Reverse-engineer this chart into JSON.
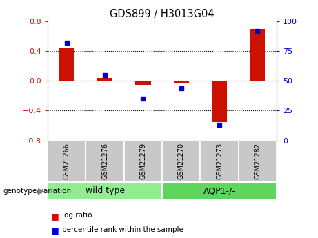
{
  "title": "GDS899 / H3013G04",
  "samples": [
    "GSM21266",
    "GSM21276",
    "GSM21279",
    "GSM21270",
    "GSM21273",
    "GSM21282"
  ],
  "log_ratio": [
    0.45,
    0.04,
    -0.05,
    -0.03,
    -0.55,
    0.7
  ],
  "percentile_rank": [
    82,
    55,
    35,
    44,
    13,
    92
  ],
  "groups": [
    {
      "label": "wild type",
      "indices": [
        0,
        1,
        2
      ],
      "color": "#90ee90"
    },
    {
      "label": "AQP1-/-",
      "indices": [
        3,
        4,
        5
      ],
      "color": "#5cd65c"
    }
  ],
  "bar_color_red": "#cc1100",
  "dot_color_blue": "#0000cc",
  "ylim_left": [
    -0.8,
    0.8
  ],
  "ylim_right": [
    0,
    100
  ],
  "yticks_left": [
    -0.8,
    -0.4,
    0.0,
    0.4,
    0.8
  ],
  "yticks_right": [
    0,
    25,
    50,
    75,
    100
  ],
  "background_color": "#ffffff",
  "sample_box_color": "#c8c8c8",
  "genotype_label": "genotype/variation",
  "legend_red_label": "log ratio",
  "legend_blue_label": "percentile rank within the sample"
}
